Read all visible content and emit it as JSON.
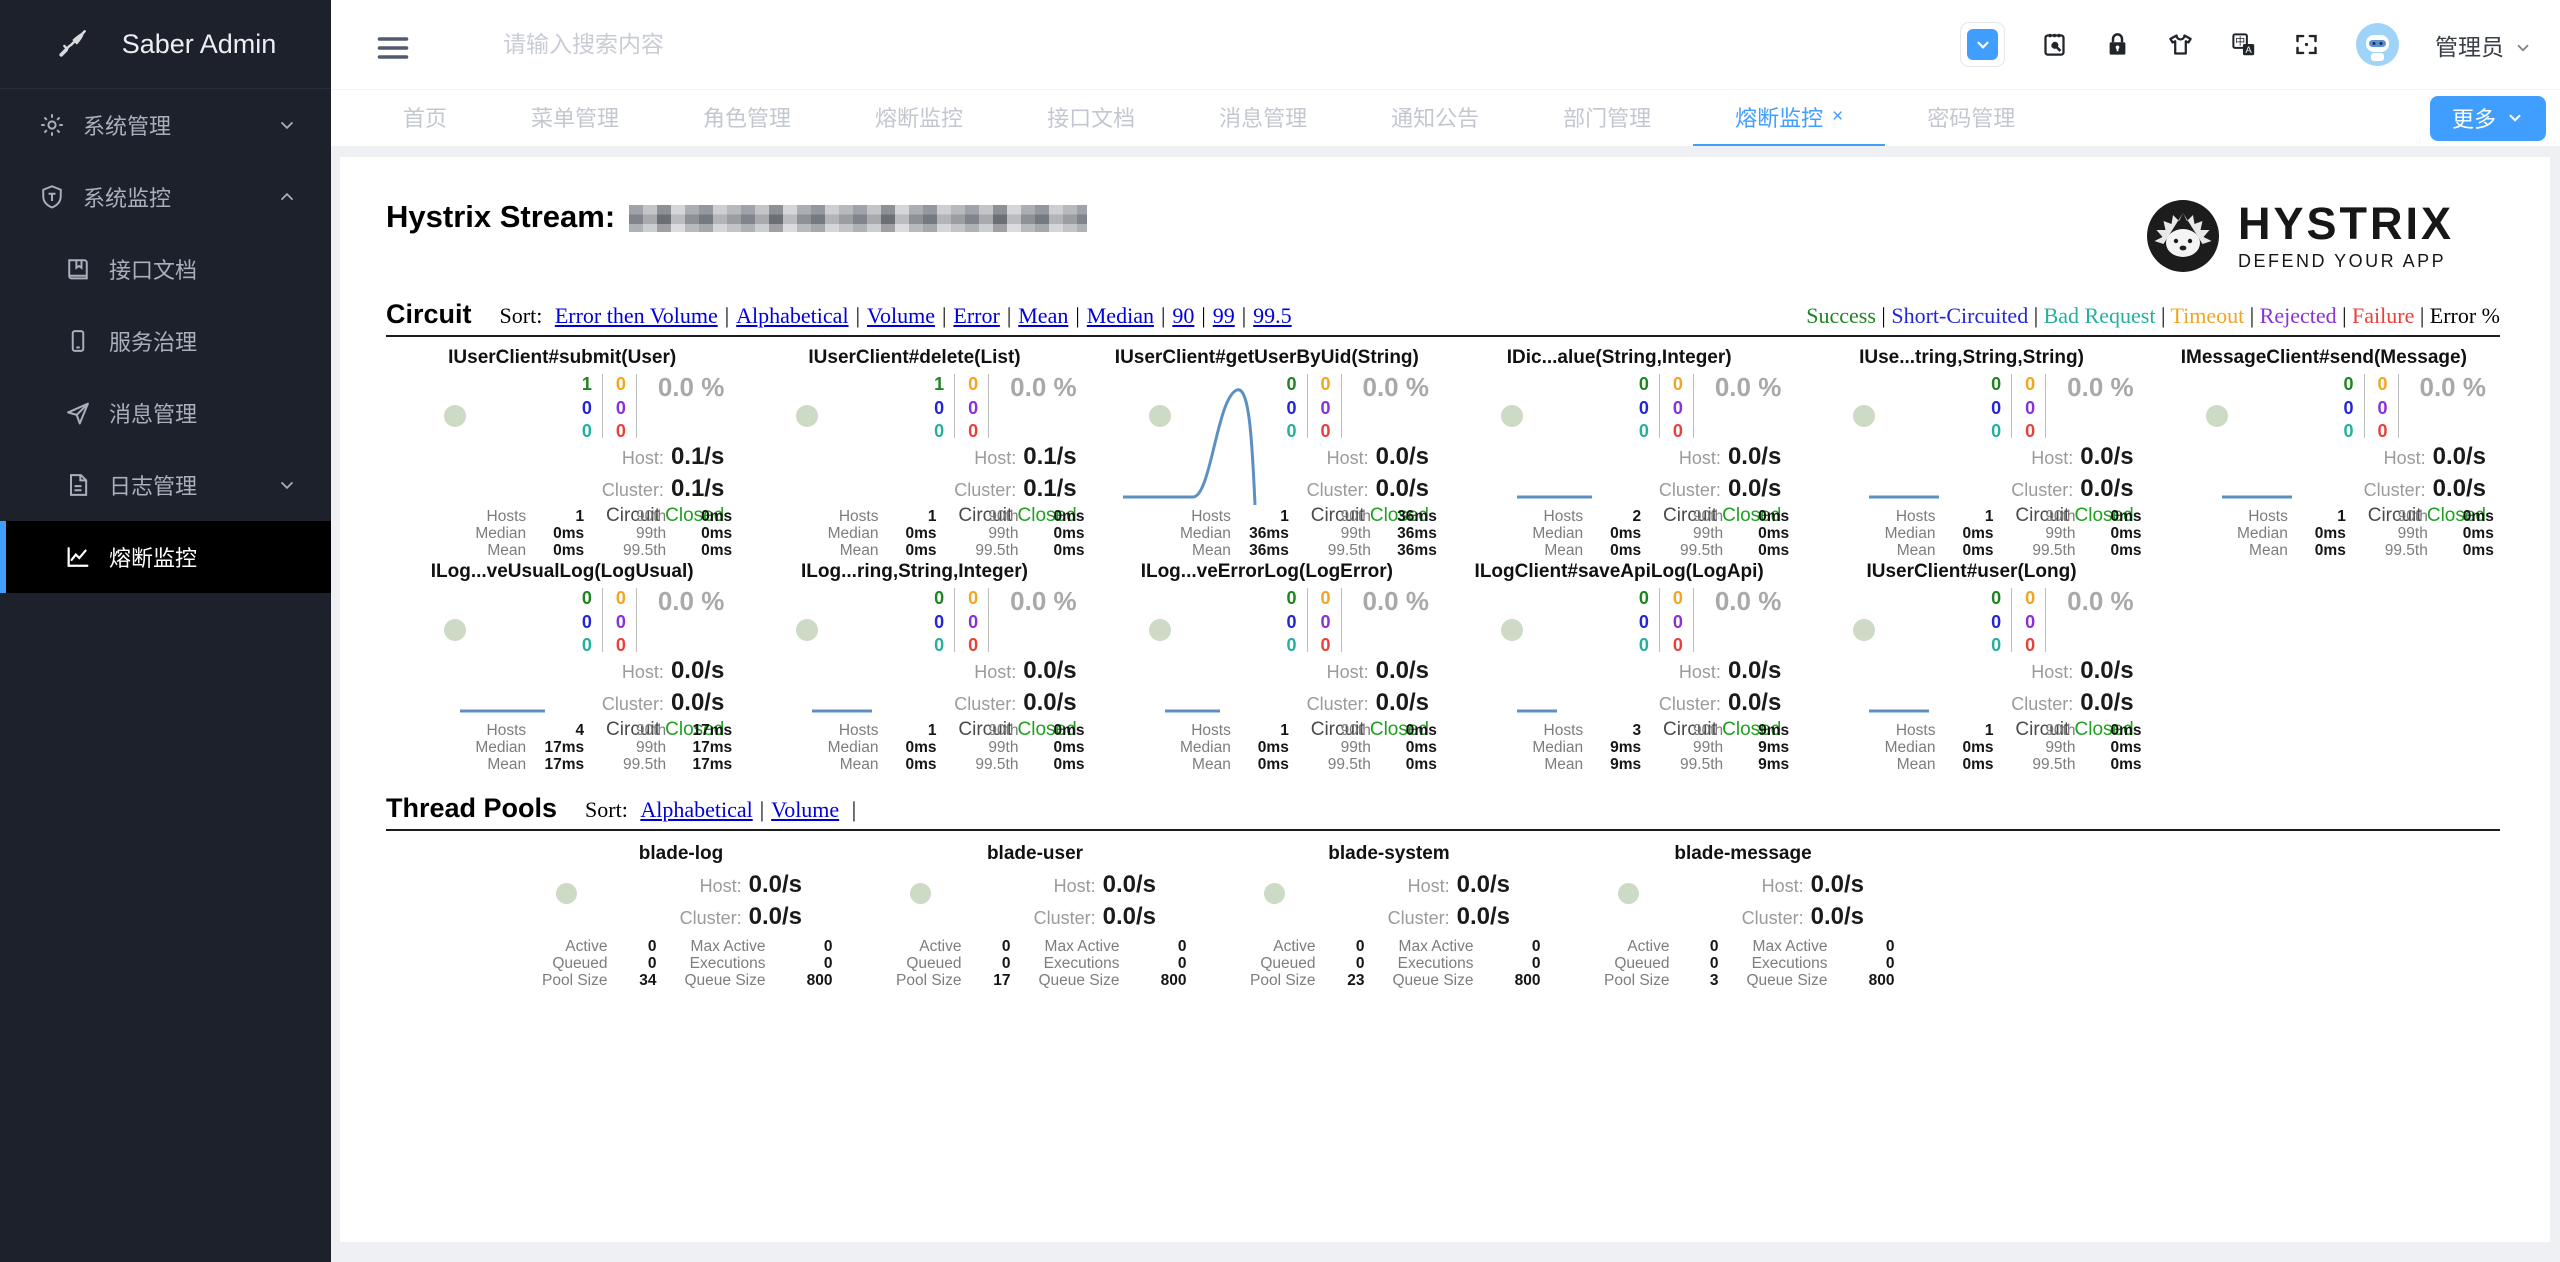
{
  "sidebar": {
    "logo_text": "Saber Admin",
    "items": [
      {
        "label": "系统管理",
        "icon": "gear-icon",
        "chevron": "down",
        "level": "top"
      },
      {
        "label": "系统监控",
        "icon": "shield-icon",
        "chevron": "up",
        "level": "top"
      },
      {
        "label": "接口文档",
        "icon": "book-icon",
        "level": "sub"
      },
      {
        "label": "服务治理",
        "icon": "mobile-icon",
        "level": "sub"
      },
      {
        "label": "消息管理",
        "icon": "send-icon",
        "level": "sub"
      },
      {
        "label": "日志管理",
        "icon": "file-icon",
        "chevron": "down",
        "level": "sub"
      },
      {
        "label": "熔断监控",
        "icon": "chart-line-icon",
        "level": "sub",
        "active": true
      }
    ]
  },
  "topbar": {
    "search_placeholder": "请输入搜索内容",
    "username": "管理员"
  },
  "tabs": {
    "items": [
      {
        "label": "首页"
      },
      {
        "label": "菜单管理"
      },
      {
        "label": "角色管理"
      },
      {
        "label": "熔断监控"
      },
      {
        "label": "接口文档"
      },
      {
        "label": "消息管理"
      },
      {
        "label": "通知公告"
      },
      {
        "label": "部门管理"
      },
      {
        "label": "熔断监控",
        "active": true,
        "closable": true
      },
      {
        "label": "密码管理"
      }
    ],
    "more_label": "更多"
  },
  "hystrix": {
    "stream_label": "Hystrix Stream:",
    "logo_title": "HYSTRIX",
    "logo_subtitle": "DEFEND YOUR APP",
    "colors": {
      "success": "#1e8420",
      "short_circuited": "#2525d8",
      "bad_request": "#23b09c",
      "timeout": "#f2a51f",
      "rejected": "#8931d9",
      "failure": "#e8413c",
      "text": "#000000",
      "error_pct": "#a9a9a9",
      "closed": "#1ea21e",
      "spark": "#5d90c2",
      "circle": "#ccdac6",
      "link": "#0000dd"
    },
    "circuit_section": {
      "title": "Circuit",
      "sort_label": "Sort:",
      "sort_links": [
        "Error then Volume",
        "Alphabetical",
        "Volume",
        "Error",
        "Mean",
        "Median",
        "90",
        "99",
        "99.5"
      ],
      "trailing_pipe": false,
      "legend": [
        {
          "label": "Success",
          "color_key": "success"
        },
        {
          "label": "Short-Circuited",
          "color_key": "short_circuited"
        },
        {
          "label": "Bad Request",
          "color_key": "bad_request"
        },
        {
          "label": "Timeout",
          "color_key": "timeout"
        },
        {
          "label": "Rejected",
          "color_key": "rejected"
        },
        {
          "label": "Failure",
          "color_key": "failure"
        },
        {
          "label": "Error %",
          "color_key": "text"
        }
      ]
    },
    "labels": {
      "host": "Host:",
      "cluster": "Cluster:",
      "circuit": "Circuit",
      "hosts": "Hosts",
      "median": "Median",
      "mean": "Mean",
      "p90": "90th",
      "p99": "99th",
      "p995": "99.5th",
      "active": "Active",
      "queued": "Queued",
      "pool_size": "Pool Size",
      "max_active": "Max Active",
      "executions": "Executions",
      "queue_size": "Queue Size"
    },
    "circuits": [
      {
        "name": "IUserClient#submit(User)",
        "success": 1,
        "short_circuited": 0,
        "bad_request": 0,
        "timeout": 0,
        "rejected": 0,
        "failure": 0,
        "error_pct": "0.0 %",
        "host": "0.1/s",
        "cluster": "0.1/s",
        "status": "Closed",
        "hosts": "1",
        "median": "0ms",
        "mean": "0ms",
        "p90": "0ms",
        "p99": "0ms",
        "p995": "0ms",
        "spark": "none"
      },
      {
        "name": "IUserClient#delete(List)",
        "success": 1,
        "short_circuited": 0,
        "bad_request": 0,
        "timeout": 0,
        "rejected": 0,
        "failure": 0,
        "error_pct": "0.0 %",
        "host": "0.1/s",
        "cluster": "0.1/s",
        "status": "Closed",
        "hosts": "1",
        "median": "0ms",
        "mean": "0ms",
        "p90": "0ms",
        "p99": "0ms",
        "p995": "0ms",
        "spark": "none"
      },
      {
        "name": "IUserClient#getUserByUid(String)",
        "success": 0,
        "short_circuited": 0,
        "bad_request": 0,
        "timeout": 0,
        "rejected": 0,
        "failure": 0,
        "error_pct": "0.0 %",
        "host": "0.0/s",
        "cluster": "0.0/s",
        "status": "Closed",
        "hosts": "1",
        "median": "36ms",
        "mean": "36ms",
        "p90": "36ms",
        "p99": "36ms",
        "p995": "36ms",
        "spark": "bump"
      },
      {
        "name": "IDic...alue(String,Integer)",
        "success": 0,
        "short_circuited": 0,
        "bad_request": 0,
        "timeout": 0,
        "rejected": 0,
        "failure": 0,
        "error_pct": "0.0 %",
        "host": "0.0/s",
        "cluster": "0.0/s",
        "status": "Closed",
        "hosts": "2",
        "median": "0ms",
        "mean": "0ms",
        "p90": "0ms",
        "p99": "0ms",
        "p995": "0ms",
        "spark": "flat",
        "spark_w": 75
      },
      {
        "name": "IUse...tring,String,String)",
        "success": 0,
        "short_circuited": 0,
        "bad_request": 0,
        "timeout": 0,
        "rejected": 0,
        "failure": 0,
        "error_pct": "0.0 %",
        "host": "0.0/s",
        "cluster": "0.0/s",
        "status": "Closed",
        "hosts": "1",
        "median": "0ms",
        "mean": "0ms",
        "p90": "0ms",
        "p99": "0ms",
        "p995": "0ms",
        "spark": "flat",
        "spark_w": 70
      },
      {
        "name": "IMessageClient#send(Message)",
        "success": 0,
        "short_circuited": 0,
        "bad_request": 0,
        "timeout": 0,
        "rejected": 0,
        "failure": 0,
        "error_pct": "0.0 %",
        "host": "0.0/s",
        "cluster": "0.0/s",
        "status": "Closed",
        "hosts": "1",
        "median": "0ms",
        "mean": "0ms",
        "p90": "0ms",
        "p99": "0ms",
        "p995": "0ms",
        "spark": "flat",
        "spark_w": 70
      },
      {
        "name": "ILog...veUsualLog(LogUsual)",
        "success": 0,
        "short_circuited": 0,
        "bad_request": 0,
        "timeout": 0,
        "rejected": 0,
        "failure": 0,
        "error_pct": "0.0 %",
        "host": "0.0/s",
        "cluster": "0.0/s",
        "status": "Closed",
        "hosts": "4",
        "median": "17ms",
        "mean": "17ms",
        "p90": "17ms",
        "p99": "17ms",
        "p995": "17ms",
        "spark": "flat",
        "spark_w": 85
      },
      {
        "name": "ILog...ring,String,Integer)",
        "success": 0,
        "short_circuited": 0,
        "bad_request": 0,
        "timeout": 0,
        "rejected": 0,
        "failure": 0,
        "error_pct": "0.0 %",
        "host": "0.0/s",
        "cluster": "0.0/s",
        "status": "Closed",
        "hosts": "1",
        "median": "0ms",
        "mean": "0ms",
        "p90": "0ms",
        "p99": "0ms",
        "p995": "0ms",
        "spark": "flat",
        "spark_w": 60
      },
      {
        "name": "ILog...veErrorLog(LogError)",
        "success": 0,
        "short_circuited": 0,
        "bad_request": 0,
        "timeout": 0,
        "rejected": 0,
        "failure": 0,
        "error_pct": "0.0 %",
        "host": "0.0/s",
        "cluster": "0.0/s",
        "status": "Closed",
        "hosts": "1",
        "median": "0ms",
        "mean": "0ms",
        "p90": "0ms",
        "p99": "0ms",
        "p995": "0ms",
        "spark": "flat",
        "spark_w": 55
      },
      {
        "name": "ILogClient#saveApiLog(LogApi)",
        "success": 0,
        "short_circuited": 0,
        "bad_request": 0,
        "timeout": 0,
        "rejected": 0,
        "failure": 0,
        "error_pct": "0.0 %",
        "host": "0.0/s",
        "cluster": "0.0/s",
        "status": "Closed",
        "hosts": "3",
        "median": "9ms",
        "mean": "9ms",
        "p90": "9ms",
        "p99": "9ms",
        "p995": "9ms",
        "spark": "flat",
        "spark_w": 40
      },
      {
        "name": "IUserClient#user(Long)",
        "success": 0,
        "short_circuited": 0,
        "bad_request": 0,
        "timeout": 0,
        "rejected": 0,
        "failure": 0,
        "error_pct": "0.0 %",
        "host": "0.0/s",
        "cluster": "0.0/s",
        "status": "Closed",
        "hosts": "1",
        "median": "0ms",
        "mean": "0ms",
        "p90": "0ms",
        "p99": "0ms",
        "p995": "0ms",
        "spark": "flat",
        "spark_w": 60
      }
    ],
    "thread_section": {
      "title": "Thread Pools",
      "sort_label": "Sort:",
      "sort_links": [
        "Alphabetical",
        "Volume"
      ],
      "trailing_pipe": true
    },
    "pools": [
      {
        "name": "blade-log",
        "host": "0.0/s",
        "cluster": "0.0/s",
        "active": "0",
        "queued": "0",
        "pool_size": "34",
        "max_active": "0",
        "executions": "0",
        "queue_size": "800"
      },
      {
        "name": "blade-user",
        "host": "0.0/s",
        "cluster": "0.0/s",
        "active": "0",
        "queued": "0",
        "pool_size": "17",
        "max_active": "0",
        "executions": "0",
        "queue_size": "800"
      },
      {
        "name": "blade-system",
        "host": "0.0/s",
        "cluster": "0.0/s",
        "active": "0",
        "queued": "0",
        "pool_size": "23",
        "max_active": "0",
        "executions": "0",
        "queue_size": "800"
      },
      {
        "name": "blade-message",
        "host": "0.0/s",
        "cluster": "0.0/s",
        "active": "0",
        "queued": "0",
        "pool_size": "3",
        "max_active": "0",
        "executions": "0",
        "queue_size": "800"
      }
    ]
  }
}
